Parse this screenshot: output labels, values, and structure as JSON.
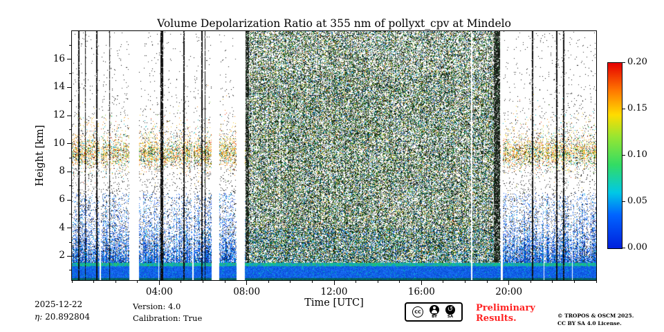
{
  "chart_data": {
    "type": "heatmap",
    "title": "Volume Depolarization Ratio at 355 nm of pollyxt_cpv at Mindelo",
    "xlabel": "Time [UTC]",
    "ylabel": "Height [km]",
    "xlim_hours": [
      0,
      24
    ],
    "ylim_km": [
      0.3,
      18
    ],
    "x_ticks": [
      {
        "hour": 4,
        "label": "04:00"
      },
      {
        "hour": 8,
        "label": "08:00"
      },
      {
        "hour": 12,
        "label": "12:00"
      },
      {
        "hour": 16,
        "label": "16:00"
      },
      {
        "hour": 20,
        "label": "20:00"
      }
    ],
    "y_ticks": [
      {
        "km": 2,
        "label": "2"
      },
      {
        "km": 4,
        "label": "4"
      },
      {
        "km": 6,
        "label": "6"
      },
      {
        "km": 8,
        "label": "8"
      },
      {
        "km": 10,
        "label": "10"
      },
      {
        "km": 12,
        "label": "12"
      },
      {
        "km": 14,
        "label": "14"
      },
      {
        "km": 16,
        "label": "16"
      }
    ],
    "colorbar": {
      "min": 0.0,
      "max": 0.2,
      "ticks": [
        {
          "value": 0.0,
          "label": "0.00"
        },
        {
          "value": 0.05,
          "label": "0.05"
        },
        {
          "value": 0.1,
          "label": "0.10"
        },
        {
          "value": 0.15,
          "label": "0.15"
        },
        {
          "value": 0.2,
          "label": "0.20"
        }
      ],
      "gradient_stops_bottom_to_top": [
        {
          "pos": 0.0,
          "color": "#0020dc"
        },
        {
          "pos": 0.18,
          "color": "#0064ff"
        },
        {
          "pos": 0.3,
          "color": "#00c8e6"
        },
        {
          "pos": 0.45,
          "color": "#32dc64"
        },
        {
          "pos": 0.6,
          "color": "#96e632"
        },
        {
          "pos": 0.72,
          "color": "#ffdc00"
        },
        {
          "pos": 0.85,
          "color": "#ff7800"
        },
        {
          "pos": 1.0,
          "color": "#e60000"
        }
      ]
    },
    "content": {
      "description": "Lidar volume depolarization ratio quicklook: solid low-depolarization blue layer below ~1.5 km with a cyan-green stripe on top, sparse nighttime speckle with an aerosol layer of warm-colored pixels near 9-10 km, dense dark daytime background noise between ~08:00 and ~19:35 UTC, vertical white data gaps and thin dark calibration lines.",
      "daytime_noise_period_hours": [
        8.0,
        19.57
      ],
      "data_gap_periods_hours": [
        [
          2.62,
          3.06
        ],
        [
          6.4,
          6.73
        ],
        [
          1.28,
          1.32
        ],
        [
          3.95,
          3.99
        ],
        [
          5.52,
          5.56
        ],
        [
          7.55,
          7.92
        ],
        [
          18.28,
          18.32
        ],
        [
          19.62,
          19.72
        ],
        [
          21.6,
          21.64
        ],
        [
          22.88,
          22.92
        ]
      ],
      "calibration_line_times_hours": [
        [
          0.32,
          0.05
        ],
        [
          0.62,
          0.05
        ],
        [
          1.14,
          0.05
        ],
        [
          1.72,
          0.05
        ],
        [
          4.12,
          0.12
        ],
        [
          5.14,
          0.06
        ],
        [
          5.96,
          0.05
        ],
        [
          6.1,
          0.05
        ],
        [
          21.1,
          0.06
        ],
        [
          22.2,
          0.05
        ],
        [
          22.52,
          0.05
        ]
      ],
      "dark_column_periods_hours": [
        [
          7.95,
          8.12
        ],
        [
          19.3,
          19.6
        ]
      ],
      "aerosol_layer_center_km": 9.3,
      "surface_layer_top_km": 1.5,
      "seed": 20251222
    }
  },
  "annotations": {
    "date": "2025-12-22",
    "eta_label": "η:",
    "eta_value": "20.892804",
    "version": "Version: 4.0",
    "calibration": "Calibration: True",
    "preliminary": "Preliminary Results.",
    "preliminary_color": "#ff2222",
    "copyright_line1": "© TROPOS & OSCM 2025.",
    "copyright_line2": "CC BY SA 4.0 License.",
    "badge": {
      "cc": "CC",
      "by": "BY",
      "sa": "SA",
      "sa_glyph": "↺"
    }
  }
}
